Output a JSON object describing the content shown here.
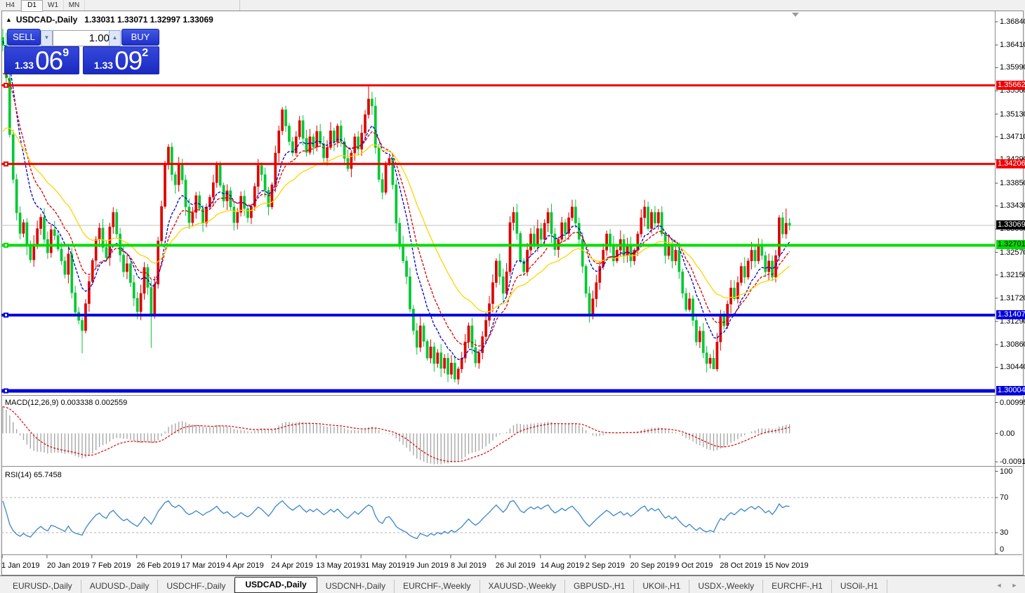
{
  "toolbar": {
    "timeframes": [
      {
        "label": "H4",
        "active": false
      },
      {
        "label": "D1",
        "active": true
      },
      {
        "label": "W1",
        "active": false
      },
      {
        "label": "MN",
        "active": false
      }
    ]
  },
  "chart": {
    "title_symbol": "USDCAD-,Daily",
    "title_ohlc": "1.33031 1.33071 1.32997 1.33069",
    "trade_panel": {
      "sell_label": "SELL",
      "buy_label": "BUY",
      "volume": "1.00",
      "sell_price_small": "1.33",
      "sell_price_big": "06",
      "sell_price_sup": "9",
      "buy_price_small": "1.33",
      "buy_price_big": "09",
      "buy_price_sup": "2",
      "decrease_icon": "▼",
      "increase_icon": "▲"
    },
    "price_axis_labels": [
      "1.36840",
      "1.36410",
      "1.35990",
      "1.35560",
      "1.35130",
      "1.34710",
      "1.34290",
      "1.33850",
      "1.33430",
      "1.33000",
      "1.32570",
      "1.32150",
      "1.31720",
      "1.31290",
      "1.30860",
      "1.30440"
    ],
    "hlines": [
      {
        "price": 1.35662,
        "label": "1.35662",
        "color": "#f00000",
        "text_color": "#ffffff",
        "thickness": 3,
        "name": "resistance-line-1"
      },
      {
        "price": 1.34206,
        "label": "1.34206",
        "color": "#f00000",
        "text_color": "#ffffff",
        "thickness": 3,
        "name": "resistance-line-2"
      },
      {
        "price": 1.32701,
        "label": "1.32701",
        "color": "#00dd00",
        "text_color": "#000000",
        "thickness": 4,
        "name": "support-line-green"
      },
      {
        "price": 1.31407,
        "label": "1.31407",
        "color": "#0000e0",
        "text_color": "#ffffff",
        "thickness": 4,
        "name": "support-line-blue-1"
      },
      {
        "price": 1.30004,
        "label": "1.30004",
        "color": "#0000e0",
        "text_color": "#ffffff",
        "thickness": 5,
        "name": "support-line-blue-2"
      }
    ],
    "current_price": {
      "value": 1.33069,
      "label": "1.33069",
      "line_color": "#c0c0c0",
      "tag_bg": "#000000",
      "tag_text": "#ffffff"
    },
    "macd_pane": {
      "label": "MACD(12,26,9) 0.003338 0.002559",
      "axis": [
        {
          "text": "0.009957",
          "value": 0.009957
        },
        {
          "text": "0.00",
          "value": 0.0
        },
        {
          "text": "-0.009186",
          "value": -0.009186
        }
      ]
    },
    "rsi_pane": {
      "label": "RSI(14) 65.7458",
      "axis": [
        {
          "text": "100",
          "value": 100
        },
        {
          "text": "70",
          "value": 70
        },
        {
          "text": "30",
          "value": 30
        },
        {
          "text": "0",
          "value": 0
        }
      ]
    }
  },
  "chart_data": {
    "type": "candlestick",
    "symbol": "USDCAD",
    "timeframe": "Daily",
    "title": "USDCAD-,Daily",
    "note": "OHLC path estimated from chart pixels",
    "ylim": [
      1.298,
      1.37
    ],
    "x_date_ticks": [
      "1 Jan 2019",
      "20 Jan 2019",
      "7 Feb 2019",
      "26 Feb 2019",
      "17 Mar 2019",
      "4 Apr 2019",
      "24 Apr 2019",
      "13 May 2019",
      "31 May 2019",
      "19 Jun 2019",
      "8 Jul 2019",
      "26 Jul 2019",
      "14 Aug 2019",
      "2 Sep 2019",
      "20 Sep 2019",
      "9 Oct 2019",
      "28 Oct 2019",
      "15 Nov 2019"
    ],
    "candles_per_tick": 13,
    "open_first": 1.3655,
    "closes": [
      1.364,
      1.358,
      1.3475,
      1.3392,
      1.333,
      1.3292,
      1.3312,
      1.3268,
      1.3243,
      1.3272,
      1.3301,
      1.3322,
      1.3281,
      1.3256,
      1.3299,
      1.3288,
      1.3263,
      1.3241,
      1.3216,
      1.3254,
      1.3182,
      1.3146,
      1.3131,
      1.3112,
      1.3162,
      1.3203,
      1.3242,
      1.3281,
      1.3302,
      1.3266,
      1.3247,
      1.3304,
      1.3331,
      1.3291,
      1.3252,
      1.3221,
      1.3236,
      1.3201,
      1.3172,
      1.3147,
      1.3181,
      1.3229,
      1.3192,
      1.3143,
      1.3198,
      1.3278,
      1.3342,
      1.3421,
      1.3452,
      1.3401,
      1.3382,
      1.3419,
      1.3391,
      1.3341,
      1.3312,
      1.3331,
      1.3362,
      1.3338,
      1.3311,
      1.3341,
      1.3359,
      1.3386,
      1.3421,
      1.3381,
      1.3352,
      1.3371,
      1.3341,
      1.3312,
      1.3331,
      1.3361,
      1.3338,
      1.3321,
      1.3342,
      1.3379,
      1.3418,
      1.3401,
      1.3372,
      1.3341,
      1.3382,
      1.3441,
      1.3482,
      1.3521,
      1.3491,
      1.3462,
      1.3441,
      1.3471,
      1.3501,
      1.3468,
      1.3442,
      1.3471,
      1.3452,
      1.3481,
      1.3458,
      1.3432,
      1.3451,
      1.3482,
      1.3461,
      1.3491,
      1.3462,
      1.3431,
      1.3412,
      1.3441,
      1.3471,
      1.3448,
      1.3478,
      1.3512,
      1.3541,
      1.3528,
      1.3451,
      1.3392,
      1.3368,
      1.3421,
      1.3431,
      1.3382,
      1.3311,
      1.3272,
      1.3241,
      1.3212,
      1.3152,
      1.3112,
      1.3081,
      1.3121,
      1.3092,
      1.3061,
      1.3082,
      1.3051,
      1.3071,
      1.3042,
      1.3061,
      1.3031,
      1.3052,
      1.3022,
      1.3041,
      1.3061,
      1.3091,
      1.3121,
      1.3081,
      1.3052,
      1.3071,
      1.3101,
      1.3131,
      1.3162,
      1.3201,
      1.3241,
      1.3212,
      1.3181,
      1.3221,
      1.3312,
      1.3331,
      1.3292,
      1.3241,
      1.3221,
      1.3261,
      1.3291,
      1.3272,
      1.3301,
      1.3281,
      1.3311,
      1.3331,
      1.3291,
      1.3262,
      1.3281,
      1.3312,
      1.3292,
      1.3321,
      1.3341,
      1.3311,
      1.3281,
      1.3231,
      1.3181,
      1.3141,
      1.3171,
      1.3201,
      1.3231,
      1.3261,
      1.3291,
      1.3271,
      1.3241,
      1.3261,
      1.3281,
      1.3251,
      1.3271,
      1.3241,
      1.3261,
      1.3291,
      1.3321,
      1.3341,
      1.3301,
      1.3331,
      1.3311,
      1.3331,
      1.3291,
      1.3251,
      1.3271,
      1.3241,
      1.3261,
      1.3221,
      1.3181,
      1.3151,
      1.3171,
      1.3131,
      1.3091,
      1.3111,
      1.3071,
      1.3051,
      1.3061,
      1.3041,
      1.3091,
      1.3141,
      1.3121,
      1.3161,
      1.3191,
      1.3171,
      1.3201,
      1.3231,
      1.3211,
      1.3241,
      1.3261,
      1.3241,
      1.3271,
      1.3251,
      1.3221,
      1.3241,
      1.3211,
      1.3251,
      1.3321,
      1.3291,
      1.3311,
      1.33069
    ],
    "wick_overrides": {
      "1": {
        "h": 1.3664
      },
      "23": {
        "l": 1.307
      },
      "43": {
        "l": 1.308
      },
      "106": {
        "h": 1.3565
      },
      "131": {
        "l": 1.3016
      },
      "206": {
        "l": 1.3042
      },
      "227": {
        "h": 1.3338
      }
    },
    "up_color": "#e00000",
    "down_color": "#00c832",
    "moving_averages": [
      {
        "name": "ma-fast-blue",
        "period": 9,
        "seed": 1.365,
        "color": "#0000cc",
        "dash": "4 2"
      },
      {
        "name": "ma-mid-red",
        "period": 14,
        "seed": 1.358,
        "color": "#dd0000",
        "dash": "4 2"
      },
      {
        "name": "ma-slow-yellow",
        "period": 30,
        "seed": 1.347,
        "color": "#ffd400",
        "dash": ""
      }
    ],
    "macd": {
      "fast": 12,
      "slow": 26,
      "signal": 9,
      "seed_fast": 1.3645,
      "seed_slow": 1.355,
      "seed_signal": 0.0085,
      "last_main": 0.003338,
      "last_signal": 0.002559,
      "hist_color": "#a8a8a8",
      "signal_color": "#dd0000",
      "axis_max": 0.009957,
      "axis_min": -0.009186
    },
    "rsi": {
      "period": 14,
      "seed_gain": 0.0014,
      "seed_loss": 0.0006,
      "last": 65.7458,
      "color": "#3a85cc",
      "levels": [
        70,
        30
      ],
      "range": [
        0,
        100
      ]
    }
  },
  "tabs": {
    "items": [
      {
        "label": "EURUSD-,Daily",
        "active": false
      },
      {
        "label": "AUDUSD-,Daily",
        "active": false
      },
      {
        "label": "USDCHF-,Daily",
        "active": false
      },
      {
        "label": "USDCAD-,Daily",
        "active": true
      },
      {
        "label": "USDCNH-,Daily",
        "active": false
      },
      {
        "label": "EURCHF-,Weekly",
        "active": false
      },
      {
        "label": "XAUUSD-,Weekly",
        "active": false
      },
      {
        "label": "GBPUSD-,H1",
        "active": false
      },
      {
        "label": "UKOil-,H1",
        "active": false
      },
      {
        "label": "USDX-,Weekly",
        "active": false
      },
      {
        "label": "EURCHF-,H1",
        "active": false
      },
      {
        "label": "USOil-,H1",
        "active": false
      }
    ],
    "scroll_left_icon": "◄",
    "scroll_right_icon": "►"
  }
}
